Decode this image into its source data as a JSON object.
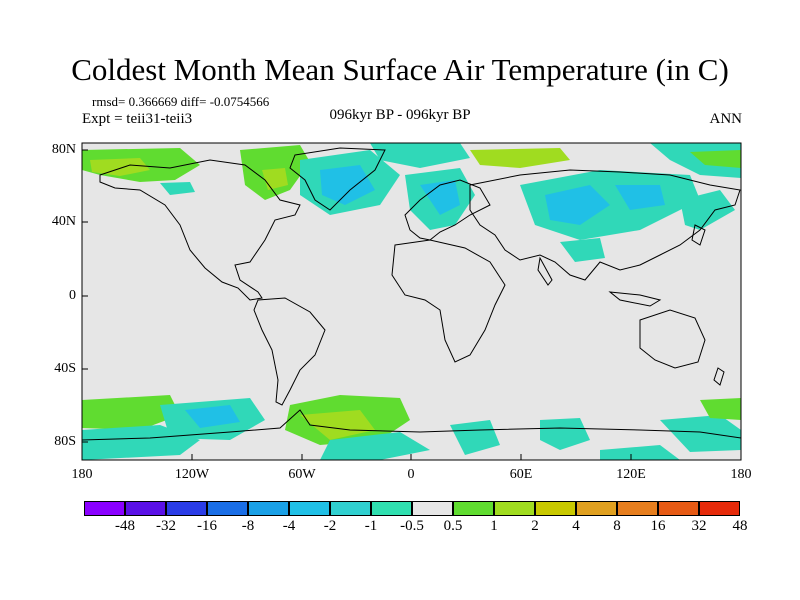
{
  "title": "Coldest Month Mean Surface Air Temperature (in C)",
  "stats": "rmsd= 0.366669 diff= -0.0754566",
  "experiment": "Expt = teii31-teii3",
  "period": "096kyr BP - 096kyr BP",
  "season": "ANN",
  "lat_labels": [
    "80N",
    "40N",
    "0",
    "40S",
    "80S"
  ],
  "lon_labels": [
    "180",
    "120W",
    "60W",
    "0",
    "60E",
    "120E",
    "180"
  ],
  "colorbar": {
    "colors": [
      "#8a00ff",
      "#5a10e6",
      "#2a3ce6",
      "#1a6ee6",
      "#1aa0e6",
      "#20c0e6",
      "#30d0d0",
      "#30e0b0",
      "#e6e6e6",
      "#60dc30",
      "#a0dc20",
      "#c8c800",
      "#e0a020",
      "#e67e1e",
      "#e65a14",
      "#e62a0a"
    ],
    "labels": [
      "-48",
      "-32",
      "-16",
      "-8",
      "-4",
      "-2",
      "-1",
      "-0.5",
      "0.5",
      "1",
      "2",
      "4",
      "8",
      "16",
      "32",
      "48"
    ]
  },
  "map_colors": {
    "background": "#e6e6e6",
    "cool_1": "#30d8b8",
    "cool_2": "#20c0e6",
    "cool_3": "#1aa0e6",
    "warm_1": "#60dc30",
    "warm_2": "#a0dc20",
    "coast": "#000000"
  }
}
